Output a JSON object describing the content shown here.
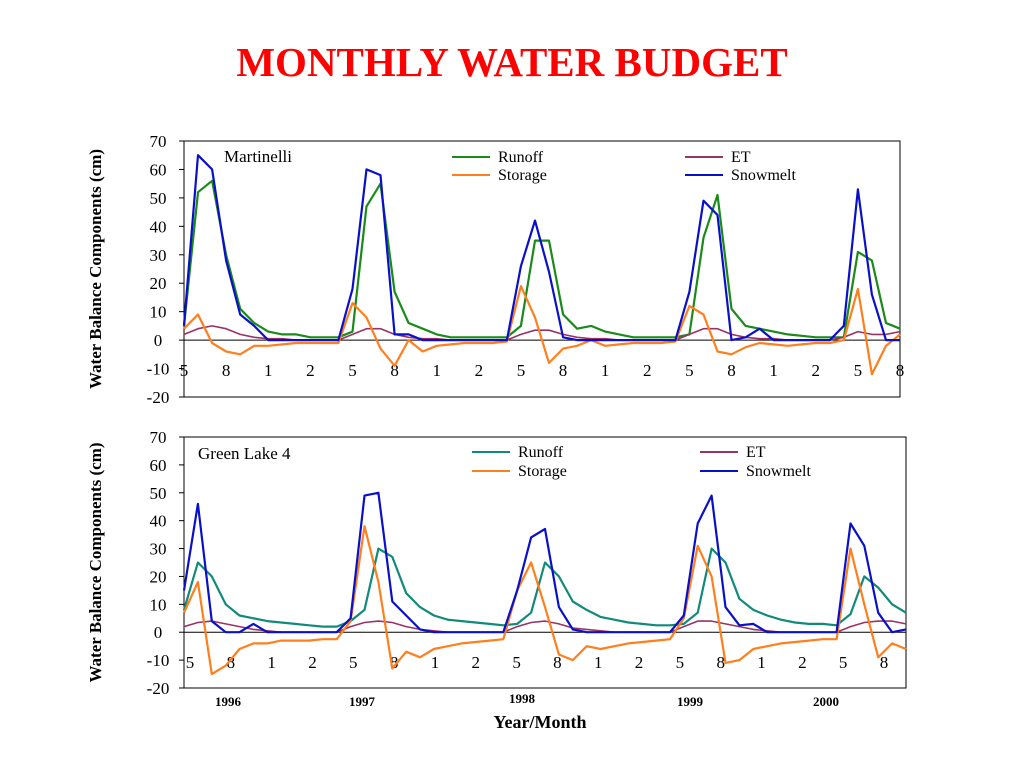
{
  "title": "MONTHLY WATER BUDGET",
  "xlabel": "Year/Month",
  "years": [
    "1996",
    "1997",
    "1998",
    "1999",
    "2000"
  ],
  "colors": {
    "runoff_top": "#1a8a1a",
    "runoff_bottom": "#128a7a",
    "et": "#993366",
    "storage": "#ff7f1e",
    "snowmelt": "#0a10c8"
  },
  "chart_data": [
    {
      "type": "line",
      "site": "Martinelli",
      "ylabel": "Water Balance Components (cm)",
      "ylim": [
        -20,
        70
      ],
      "yticks": [
        "70",
        "60",
        "50",
        "40",
        "30",
        "20",
        "10",
        "0",
        "-10",
        "-20"
      ],
      "month_ticks": [
        "5",
        "8",
        "1",
        "2",
        "5",
        "8",
        "1",
        "2",
        "5",
        "8",
        "1",
        "2",
        "5",
        "8",
        "1",
        "2",
        "5",
        "8"
      ],
      "legend": {
        "runoff": "Runoff",
        "et": "ET",
        "storage": "Storage",
        "snowmelt": "Snowmelt"
      },
      "series": [
        {
          "key": "runoff",
          "name": "Runoff",
          "values": [
            5,
            52,
            56,
            30,
            11,
            6,
            3,
            2,
            2,
            1,
            1,
            1,
            3,
            47,
            55,
            17,
            6,
            4,
            2,
            1,
            1,
            1,
            1,
            1,
            5,
            35,
            35,
            9,
            4,
            5,
            3,
            2,
            1,
            1,
            1,
            1,
            2,
            36,
            51,
            11,
            5,
            4,
            3,
            2,
            1.5,
            1,
            1,
            1,
            31,
            28,
            6,
            4
          ]
        },
        {
          "key": "et",
          "name": "ET",
          "values": [
            2,
            4,
            5,
            4,
            2,
            1,
            0.5,
            0.5,
            0,
            0,
            0,
            0,
            2,
            4,
            4,
            2,
            1,
            0.5,
            0.5,
            0,
            0,
            0,
            0,
            0,
            2,
            3.5,
            3.5,
            2,
            1,
            0.5,
            0.5,
            0,
            0,
            0,
            0,
            0,
            2,
            4,
            4,
            2,
            1,
            0.5,
            0.5,
            0,
            0,
            0,
            0,
            1,
            3,
            2,
            2,
            3
          ]
        },
        {
          "key": "storage",
          "name": "Storage",
          "values": [
            4,
            9,
            -1,
            -4,
            -5,
            -2,
            -2,
            -1.5,
            -1,
            -1,
            -1,
            -1,
            13,
            8,
            -3,
            -9,
            0,
            -4,
            -2,
            -1.5,
            -1,
            -1,
            -1,
            -0.5,
            19,
            8,
            -8,
            -3,
            -2,
            0,
            -2,
            -1.5,
            -1,
            -1,
            -1,
            -0.5,
            12,
            9,
            -4,
            -5,
            -2.5,
            -1,
            -1.5,
            -2,
            -1.5,
            -1,
            -1,
            0,
            18,
            -12,
            -2,
            2
          ]
        },
        {
          "key": "snowmelt",
          "name": "Snowmelt",
          "values": [
            5,
            65,
            60,
            28,
            9,
            5,
            0,
            0,
            0,
            0,
            0,
            0,
            18,
            60,
            58,
            2,
            2,
            0,
            0,
            0,
            0,
            0,
            0,
            0,
            26,
            42,
            24,
            1,
            0,
            0,
            0,
            0,
            0,
            0,
            0,
            0,
            17,
            49,
            44,
            0,
            1,
            4,
            0,
            0,
            0,
            0,
            0,
            5,
            53,
            16,
            0,
            0
          ]
        }
      ]
    },
    {
      "type": "line",
      "site": "Green Lake 4",
      "ylabel": "Water Balance Components (cm)",
      "ylim": [
        -20,
        70
      ],
      "yticks": [
        "70",
        "60",
        "50",
        "40",
        "30",
        "20",
        "10",
        "0",
        "-10",
        "-20"
      ],
      "month_ticks": [
        "5",
        "8",
        "1",
        "2",
        "5",
        "8",
        "1",
        "2",
        "5",
        "8",
        "1",
        "2",
        "5",
        "8",
        "1",
        "2",
        "5",
        "8"
      ],
      "legend": {
        "runoff": "Runoff",
        "et": "ET",
        "storage": "Storage",
        "snowmelt": "Snowmelt"
      },
      "series": [
        {
          "key": "runoff",
          "name": "Runoff",
          "values": [
            8,
            25,
            20,
            10,
            6,
            5,
            4,
            3.5,
            3,
            2.5,
            2,
            2,
            4,
            8,
            30,
            27,
            14,
            9,
            6,
            4.5,
            4,
            3.5,
            3,
            2.5,
            3,
            7,
            25,
            20,
            11,
            8,
            5.5,
            4.5,
            3.5,
            3,
            2.5,
            2.5,
            3,
            7,
            30,
            25,
            12,
            8,
            6,
            4.5,
            3.5,
            3,
            3,
            2.5,
            6.5,
            20,
            16,
            10,
            7
          ]
        },
        {
          "key": "et",
          "name": "ET",
          "values": [
            2,
            3.5,
            4,
            3,
            2,
            1,
            0.5,
            0,
            0,
            0,
            0,
            0,
            2,
            3.5,
            4,
            3.5,
            2,
            1,
            0.5,
            0,
            0,
            0,
            0,
            0,
            2,
            3.5,
            4,
            3,
            1.5,
            1,
            0.5,
            0,
            0,
            0,
            0,
            0,
            2,
            4,
            4,
            3,
            2,
            1,
            0.5,
            0,
            0,
            0,
            0,
            0,
            2,
            3.5,
            4,
            4,
            3
          ]
        },
        {
          "key": "storage",
          "name": "Storage",
          "values": [
            7,
            18,
            -15,
            -12,
            -6,
            -4,
            -4,
            -3,
            -3,
            -3,
            -2.5,
            -2.5,
            4,
            38,
            18,
            -13,
            -7,
            -9,
            -6,
            -5,
            -4,
            -3.5,
            -3,
            -2.5,
            15,
            25,
            9,
            -8,
            -10,
            -5,
            -6,
            -5,
            -4,
            -3.5,
            -3,
            -2.5,
            5,
            31,
            20,
            -11,
            -10,
            -6,
            -5,
            -4,
            -3.5,
            -3,
            -2.5,
            -2.5,
            30,
            10,
            -9,
            -4,
            -6
          ]
        },
        {
          "key": "snowmelt",
          "name": "Snowmelt",
          "values": [
            15,
            46,
            4,
            0,
            0,
            3,
            0,
            0,
            0,
            0,
            0,
            0,
            5,
            49,
            50,
            11,
            6,
            1,
            0,
            0,
            0,
            0,
            0,
            0,
            15,
            34,
            37,
            9,
            1,
            0,
            0,
            0,
            0,
            0,
            0,
            0,
            6,
            39,
            49,
            9,
            2.5,
            3,
            0,
            0,
            0,
            0,
            0,
            0,
            39,
            31,
            7,
            0,
            1
          ]
        }
      ]
    }
  ]
}
